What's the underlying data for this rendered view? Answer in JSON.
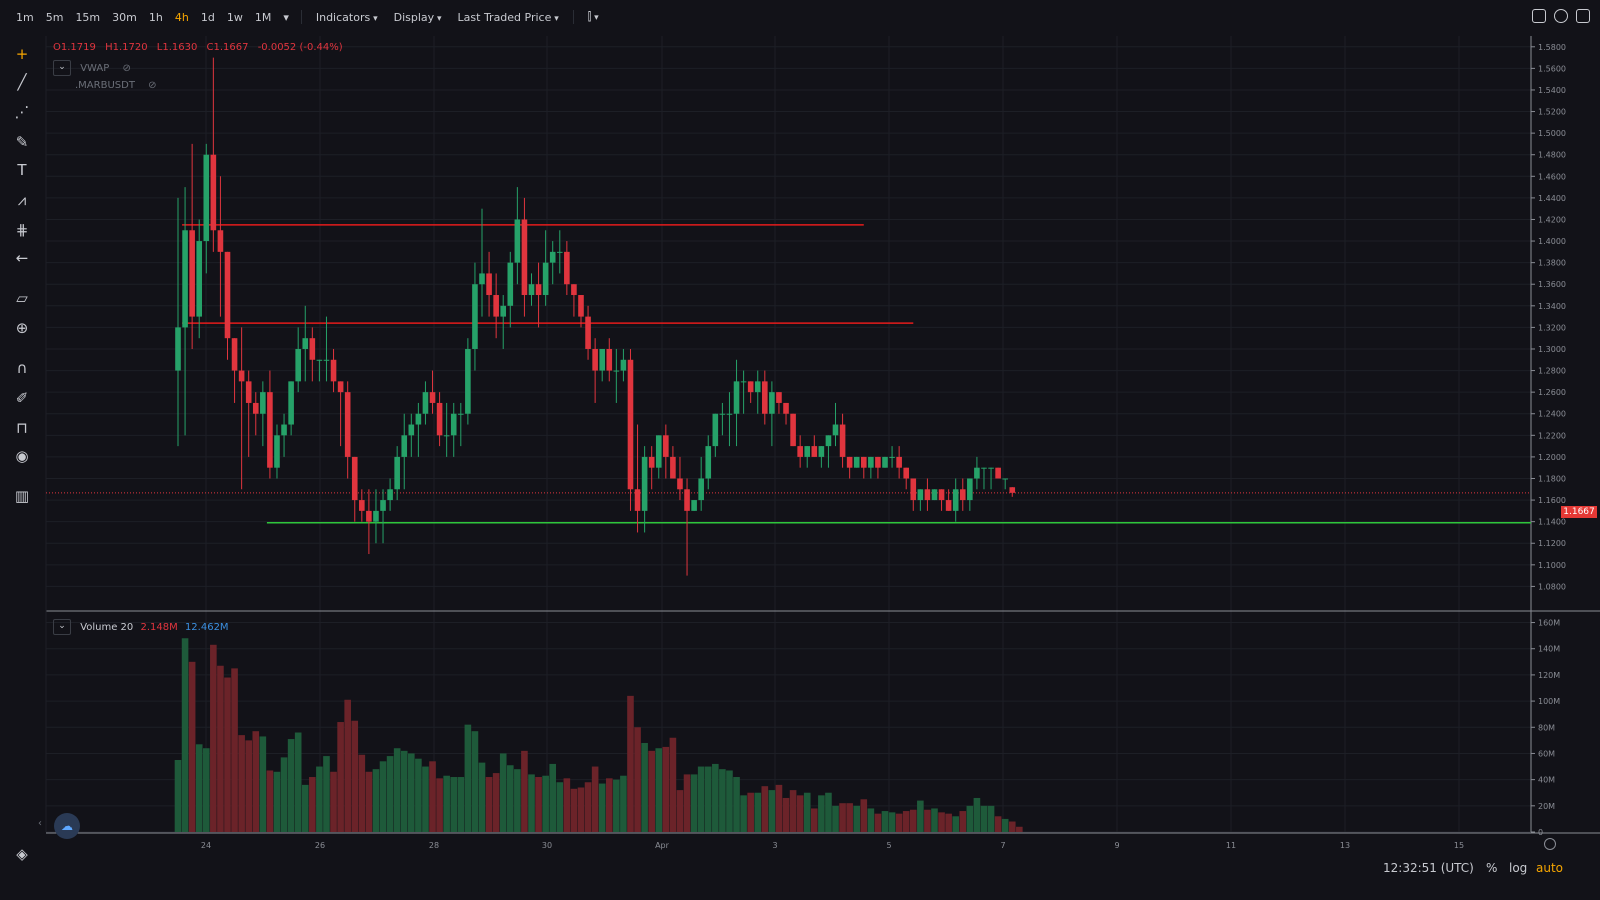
{
  "toolbar": {
    "timeframes": [
      "1m",
      "5m",
      "15m",
      "30m",
      "1h",
      "4h",
      "1d",
      "1w",
      "1M"
    ],
    "active_timeframe": "4h",
    "menus": [
      "Indicators",
      "Display",
      "Last Traded Price"
    ]
  },
  "legend": {
    "ohlc": {
      "o": "O1.1719",
      "h": "H1.1720",
      "l": "L1.1630",
      "c": "C1.1667",
      "change": "-0.0052 (-0.44%)"
    },
    "vwap_label": "VWAP",
    "symbol_label": ".MARBUSDT"
  },
  "volume_legend": {
    "label": "Volume 20",
    "v1": "2.148M",
    "v2": "12.462M"
  },
  "price_axis": {
    "ticks": [
      "1.5800",
      "1.5600",
      "1.5400",
      "1.5200",
      "1.5000",
      "1.4800",
      "1.4600",
      "1.4400",
      "1.4200",
      "1.4000",
      "1.3800",
      "1.3600",
      "1.3400",
      "1.3200",
      "1.3000",
      "1.2800",
      "1.2600",
      "1.2400",
      "1.2200",
      "1.2000",
      "1.1800",
      "1.1600",
      "1.1400",
      "1.1200",
      "1.1000",
      "1.0800"
    ],
    "current_price": "1.1667"
  },
  "volume_axis": {
    "ticks": [
      "160M",
      "140M",
      "120M",
      "100M",
      "80M",
      "60M",
      "40M",
      "20M",
      "0"
    ]
  },
  "time_axis": {
    "ticks": [
      "24",
      "26",
      "28",
      "30",
      "Apr",
      "3",
      "5",
      "7",
      "9",
      "11",
      "13",
      "15"
    ]
  },
  "status": {
    "clock": "12:32:51 (UTC)",
    "percent": "%",
    "log": "log",
    "auto": "auto"
  },
  "colors": {
    "up": "#26a269",
    "down": "#e0353e",
    "vol_up": "#1e5a3a",
    "vol_down": "#6b2329",
    "hline_red": "#e51b1b",
    "hline_green": "#2fc53b",
    "accent": "#f7a600"
  },
  "chart_data": {
    "type": "candlestick",
    "x_start": "Mar 23 12:00",
    "interval": "4h",
    "candles": [
      [
        1.28,
        1.44,
        1.21,
        1.32
      ],
      [
        1.32,
        1.45,
        1.22,
        1.41
      ],
      [
        1.41,
        1.49,
        1.3,
        1.33
      ],
      [
        1.33,
        1.42,
        1.31,
        1.4
      ],
      [
        1.4,
        1.49,
        1.37,
        1.48
      ],
      [
        1.48,
        1.57,
        1.39,
        1.41
      ],
      [
        1.41,
        1.46,
        1.33,
        1.39
      ],
      [
        1.39,
        1.39,
        1.29,
        1.31
      ],
      [
        1.31,
        1.31,
        1.25,
        1.28
      ],
      [
        1.28,
        1.32,
        1.17,
        1.27
      ],
      [
        1.27,
        1.28,
        1.2,
        1.25
      ],
      [
        1.25,
        1.26,
        1.22,
        1.24
      ],
      [
        1.24,
        1.27,
        1.21,
        1.26
      ],
      [
        1.26,
        1.28,
        1.18,
        1.19
      ],
      [
        1.19,
        1.23,
        1.18,
        1.22
      ],
      [
        1.22,
        1.24,
        1.2,
        1.23
      ],
      [
        1.23,
        1.27,
        1.22,
        1.27
      ],
      [
        1.27,
        1.32,
        1.26,
        1.3
      ],
      [
        1.3,
        1.34,
        1.27,
        1.31
      ],
      [
        1.31,
        1.32,
        1.27,
        1.29
      ],
      [
        1.29,
        1.29,
        1.27,
        1.29
      ],
      [
        1.29,
        1.33,
        1.27,
        1.29
      ],
      [
        1.29,
        1.3,
        1.26,
        1.27
      ],
      [
        1.27,
        1.27,
        1.21,
        1.26
      ],
      [
        1.26,
        1.27,
        1.18,
        1.2
      ],
      [
        1.2,
        1.2,
        1.14,
        1.16
      ],
      [
        1.16,
        1.17,
        1.14,
        1.15
      ],
      [
        1.15,
        1.17,
        1.11,
        1.14
      ],
      [
        1.14,
        1.17,
        1.12,
        1.15
      ],
      [
        1.15,
        1.17,
        1.12,
        1.16
      ],
      [
        1.16,
        1.18,
        1.15,
        1.17
      ],
      [
        1.17,
        1.21,
        1.16,
        1.2
      ],
      [
        1.2,
        1.24,
        1.17,
        1.22
      ],
      [
        1.22,
        1.24,
        1.2,
        1.23
      ],
      [
        1.23,
        1.25,
        1.2,
        1.24
      ],
      [
        1.24,
        1.27,
        1.23,
        1.26
      ],
      [
        1.26,
        1.28,
        1.24,
        1.25
      ],
      [
        1.25,
        1.26,
        1.21,
        1.22
      ],
      [
        1.22,
        1.25,
        1.2,
        1.22
      ],
      [
        1.22,
        1.25,
        1.2,
        1.24
      ],
      [
        1.24,
        1.25,
        1.21,
        1.24
      ],
      [
        1.24,
        1.31,
        1.23,
        1.3
      ],
      [
        1.3,
        1.38,
        1.28,
        1.36
      ],
      [
        1.36,
        1.43,
        1.33,
        1.37
      ],
      [
        1.37,
        1.39,
        1.33,
        1.35
      ],
      [
        1.35,
        1.37,
        1.31,
        1.33
      ],
      [
        1.33,
        1.35,
        1.3,
        1.34
      ],
      [
        1.34,
        1.39,
        1.32,
        1.38
      ],
      [
        1.38,
        1.45,
        1.36,
        1.42
      ],
      [
        1.42,
        1.44,
        1.33,
        1.35
      ],
      [
        1.35,
        1.37,
        1.34,
        1.36
      ],
      [
        1.36,
        1.38,
        1.32,
        1.35
      ],
      [
        1.35,
        1.41,
        1.34,
        1.38
      ],
      [
        1.38,
        1.4,
        1.36,
        1.39
      ],
      [
        1.39,
        1.41,
        1.37,
        1.39
      ],
      [
        1.39,
        1.4,
        1.35,
        1.36
      ],
      [
        1.36,
        1.36,
        1.33,
        1.35
      ],
      [
        1.35,
        1.35,
        1.32,
        1.33
      ],
      [
        1.33,
        1.34,
        1.29,
        1.3
      ],
      [
        1.3,
        1.31,
        1.25,
        1.28
      ],
      [
        1.28,
        1.3,
        1.27,
        1.3
      ],
      [
        1.3,
        1.31,
        1.27,
        1.28
      ],
      [
        1.28,
        1.3,
        1.25,
        1.28
      ],
      [
        1.28,
        1.3,
        1.27,
        1.29
      ],
      [
        1.29,
        1.3,
        1.15,
        1.17
      ],
      [
        1.17,
        1.23,
        1.13,
        1.15
      ],
      [
        1.15,
        1.21,
        1.13,
        1.2
      ],
      [
        1.2,
        1.21,
        1.17,
        1.19
      ],
      [
        1.19,
        1.22,
        1.18,
        1.22
      ],
      [
        1.22,
        1.23,
        1.18,
        1.2
      ],
      [
        1.2,
        1.21,
        1.18,
        1.18
      ],
      [
        1.18,
        1.2,
        1.16,
        1.17
      ],
      [
        1.17,
        1.18,
        1.09,
        1.15
      ],
      [
        1.15,
        1.16,
        1.15,
        1.16
      ],
      [
        1.16,
        1.2,
        1.15,
        1.18
      ],
      [
        1.18,
        1.22,
        1.17,
        1.21
      ],
      [
        1.21,
        1.24,
        1.2,
        1.24
      ],
      [
        1.24,
        1.25,
        1.22,
        1.24
      ],
      [
        1.24,
        1.26,
        1.21,
        1.24
      ],
      [
        1.24,
        1.29,
        1.21,
        1.27
      ],
      [
        1.27,
        1.28,
        1.24,
        1.27
      ],
      [
        1.27,
        1.27,
        1.25,
        1.26
      ],
      [
        1.26,
        1.28,
        1.24,
        1.27
      ],
      [
        1.27,
        1.28,
        1.23,
        1.24
      ],
      [
        1.24,
        1.27,
        1.21,
        1.26
      ],
      [
        1.26,
        1.26,
        1.24,
        1.25
      ],
      [
        1.25,
        1.25,
        1.23,
        1.24
      ],
      [
        1.24,
        1.24,
        1.21,
        1.21
      ],
      [
        1.21,
        1.22,
        1.19,
        1.2
      ],
      [
        1.2,
        1.21,
        1.19,
        1.21
      ],
      [
        1.21,
        1.22,
        1.2,
        1.2
      ],
      [
        1.2,
        1.21,
        1.19,
        1.21
      ],
      [
        1.21,
        1.22,
        1.19,
        1.22
      ],
      [
        1.22,
        1.25,
        1.21,
        1.23
      ],
      [
        1.23,
        1.24,
        1.19,
        1.2
      ],
      [
        1.2,
        1.2,
        1.18,
        1.19
      ],
      [
        1.19,
        1.2,
        1.19,
        1.2
      ],
      [
        1.2,
        1.2,
        1.18,
        1.19
      ],
      [
        1.19,
        1.2,
        1.18,
        1.2
      ],
      [
        1.2,
        1.2,
        1.18,
        1.19
      ],
      [
        1.19,
        1.2,
        1.19,
        1.2
      ],
      [
        1.2,
        1.21,
        1.19,
        1.2
      ],
      [
        1.2,
        1.21,
        1.18,
        1.19
      ],
      [
        1.19,
        1.19,
        1.17,
        1.18
      ],
      [
        1.18,
        1.18,
        1.15,
        1.16
      ],
      [
        1.16,
        1.17,
        1.15,
        1.17
      ],
      [
        1.17,
        1.18,
        1.15,
        1.16
      ],
      [
        1.16,
        1.17,
        1.16,
        1.17
      ],
      [
        1.17,
        1.17,
        1.15,
        1.16
      ],
      [
        1.16,
        1.17,
        1.15,
        1.15
      ],
      [
        1.15,
        1.18,
        1.14,
        1.17
      ],
      [
        1.17,
        1.18,
        1.15,
        1.16
      ],
      [
        1.16,
        1.18,
        1.15,
        1.18
      ],
      [
        1.18,
        1.2,
        1.17,
        1.19
      ],
      [
        1.19,
        1.19,
        1.17,
        1.19
      ],
      [
        1.19,
        1.19,
        1.17,
        1.19
      ],
      [
        1.19,
        1.19,
        1.18,
        1.18
      ],
      [
        1.18,
        1.18,
        1.17,
        1.18
      ],
      [
        1.1719,
        1.172,
        1.163,
        1.1667
      ]
    ],
    "volume_millions": [
      55,
      148,
      130,
      67,
      64,
      143,
      127,
      118,
      125,
      74,
      70,
      77,
      73,
      47,
      46,
      57,
      71,
      76,
      36,
      42,
      50,
      58,
      46,
      84,
      101,
      85,
      59,
      46,
      48,
      54,
      58,
      64,
      62,
      60,
      56,
      50,
      54,
      41,
      43,
      42,
      42,
      82,
      77,
      53,
      42,
      45,
      60,
      51,
      48,
      62,
      44,
      42,
      43,
      52,
      38,
      41,
      33,
      34,
      38,
      50,
      37,
      41,
      40,
      43,
      104,
      80,
      68,
      62,
      64,
      65,
      72,
      32,
      44,
      44,
      50,
      50,
      52,
      48,
      47,
      42,
      28,
      30,
      30,
      35,
      32,
      36,
      26,
      32,
      28,
      30,
      18,
      28,
      30,
      20,
      22,
      22,
      20,
      25,
      18,
      14,
      16,
      15,
      14,
      16,
      17,
      24,
      17,
      18,
      15,
      14,
      12,
      16,
      20,
      26,
      20,
      20,
      12,
      10,
      8,
      4
    ],
    "hlines": [
      {
        "price": 1.415,
        "color": "red",
        "from_index": 1,
        "to_index": 97
      },
      {
        "price": 1.324,
        "color": "red",
        "from_index": 1,
        "to_index": 104
      },
      {
        "price": 1.139,
        "color": "green",
        "from_index": 13,
        "to_index": -1
      },
      {
        "price": 1.1667,
        "color": "dotted-red",
        "from_index": 0,
        "to_index": -1
      }
    ],
    "price_ylim": [
      1.06,
      1.59
    ],
    "volume_ylim": [
      0,
      165
    ]
  }
}
